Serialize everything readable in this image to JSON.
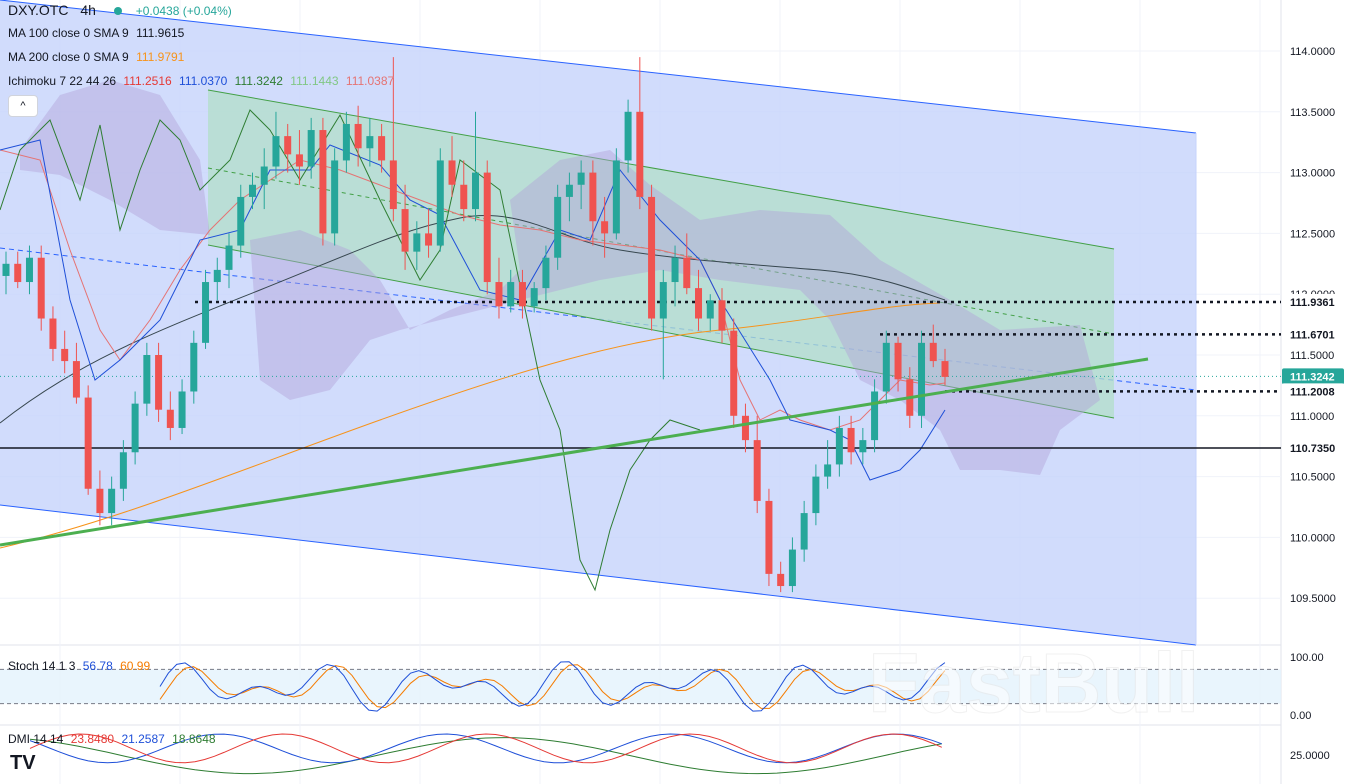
{
  "header": {
    "symbol": "DXY.OTC",
    "interval": "4h",
    "change": "+0.0438 (+0.04%)"
  },
  "legends": {
    "ma100": {
      "label": "MA 100 close 0 SMA 9",
      "value": "111.9615",
      "color": "#131722"
    },
    "ma200": {
      "label": "MA 200 close 0 SMA 9",
      "value": "111.9791",
      "color": "#f7931a"
    },
    "ichimoku": {
      "label": "Ichimoku 7 22 44 26",
      "values": [
        "111.2516",
        "111.0370",
        "111.3242",
        "111.1443",
        "111.0387"
      ],
      "colors": [
        "#e53935",
        "#1e4fd8",
        "#2e7d32",
        "#81c784",
        "#e57373"
      ]
    },
    "stoch": {
      "label": "Stoch 14 1 3",
      "values": [
        "56.78",
        "60.99"
      ],
      "colors": [
        "#1e4fd8",
        "#f57c00"
      ]
    },
    "dmi": {
      "label": "DMI 14 14",
      "values": [
        "23.8480",
        "21.2587",
        "18.8648"
      ],
      "colors": [
        "#e53935",
        "#1e4fd8",
        "#2e7d32"
      ]
    }
  },
  "price_axis": {
    "ticks": [
      "114.0000",
      "113.5000",
      "113.0000",
      "112.5000",
      "112.0000",
      "111.5000",
      "111.0000",
      "110.5000",
      "110.0000",
      "109.5000"
    ]
  },
  "price_labels": [
    {
      "value": "111.9361",
      "style": "white"
    },
    {
      "value": "111.6701",
      "style": "white"
    },
    {
      "value": "111.3242",
      "style": "teal"
    },
    {
      "value": "111.2008",
      "style": "white"
    },
    {
      "value": "110.7350",
      "style": "white"
    }
  ],
  "stoch_axis": {
    "ticks": [
      "100.00",
      "0.00"
    ]
  },
  "dmi_axis": {
    "ticks": [
      "25.0000"
    ]
  },
  "watermark": "FastBull",
  "collapse_glyph": "^",
  "logo": "TV",
  "chart_data": {
    "type": "candlestick",
    "symbol": "DXY.OTC",
    "interval": "4h",
    "y_range": [
      109.2,
      114.3
    ],
    "candles": [
      [
        112.15,
        112.35,
        112.0,
        112.25
      ],
      [
        112.25,
        112.35,
        112.05,
        112.1
      ],
      [
        112.1,
        112.4,
        112.0,
        112.3
      ],
      [
        112.3,
        112.4,
        111.7,
        111.8
      ],
      [
        111.8,
        111.9,
        111.45,
        111.55
      ],
      [
        111.55,
        111.7,
        111.35,
        111.45
      ],
      [
        111.45,
        111.6,
        111.1,
        111.15
      ],
      [
        111.15,
        111.25,
        110.35,
        110.4
      ],
      [
        110.4,
        110.55,
        110.1,
        110.2
      ],
      [
        110.2,
        110.5,
        110.1,
        110.4
      ],
      [
        110.4,
        110.8,
        110.3,
        110.7
      ],
      [
        110.7,
        111.2,
        110.6,
        111.1
      ],
      [
        111.1,
        111.6,
        111.0,
        111.5
      ],
      [
        111.5,
        111.6,
        110.95,
        111.05
      ],
      [
        111.05,
        111.2,
        110.8,
        110.9
      ],
      [
        110.9,
        111.3,
        110.85,
        111.2
      ],
      [
        111.2,
        111.7,
        111.1,
        111.6
      ],
      [
        111.6,
        112.2,
        111.55,
        112.1
      ],
      [
        112.1,
        112.3,
        111.95,
        112.2
      ],
      [
        112.2,
        112.5,
        112.05,
        112.4
      ],
      [
        112.4,
        112.9,
        112.3,
        112.8
      ],
      [
        112.8,
        113.0,
        112.7,
        112.9
      ],
      [
        112.9,
        113.2,
        112.7,
        113.05
      ],
      [
        113.05,
        113.5,
        112.95,
        113.3
      ],
      [
        113.3,
        113.4,
        113.0,
        113.15
      ],
      [
        113.15,
        113.35,
        112.9,
        113.05
      ],
      [
        113.05,
        113.45,
        112.95,
        113.35
      ],
      [
        113.35,
        113.45,
        112.4,
        112.5
      ],
      [
        112.5,
        113.2,
        112.4,
        113.1
      ],
      [
        113.1,
        113.5,
        113.0,
        113.4
      ],
      [
        113.4,
        113.55,
        113.05,
        113.2
      ],
      [
        113.2,
        113.45,
        113.05,
        113.3
      ],
      [
        113.3,
        113.4,
        113.0,
        113.1
      ],
      [
        113.1,
        113.95,
        112.6,
        112.7
      ],
      [
        112.7,
        112.9,
        112.2,
        112.35
      ],
      [
        112.35,
        112.6,
        112.2,
        112.5
      ],
      [
        112.5,
        112.7,
        112.3,
        112.4
      ],
      [
        112.4,
        113.2,
        112.35,
        113.1
      ],
      [
        113.1,
        113.3,
        112.8,
        112.9
      ],
      [
        112.9,
        113.1,
        112.6,
        112.7
      ],
      [
        112.7,
        113.5,
        112.6,
        113.0
      ],
      [
        113.0,
        113.1,
        112.0,
        112.1
      ],
      [
        112.1,
        112.3,
        111.8,
        111.9
      ],
      [
        111.9,
        112.2,
        111.85,
        112.1
      ],
      [
        112.1,
        112.2,
        111.8,
        111.9
      ],
      [
        111.9,
        112.1,
        111.85,
        112.05
      ],
      [
        112.05,
        112.4,
        111.95,
        112.3
      ],
      [
        112.3,
        112.9,
        112.2,
        112.8
      ],
      [
        112.8,
        113.0,
        112.6,
        112.9
      ],
      [
        112.9,
        113.1,
        112.7,
        113.0
      ],
      [
        113.0,
        113.1,
        112.4,
        112.6
      ],
      [
        112.6,
        112.8,
        112.3,
        112.5
      ],
      [
        112.5,
        113.2,
        112.45,
        113.1
      ],
      [
        113.1,
        113.6,
        113.0,
        113.5
      ],
      [
        113.5,
        113.95,
        112.7,
        112.8
      ],
      [
        112.8,
        112.9,
        111.7,
        111.8
      ],
      [
        111.8,
        112.2,
        111.3,
        112.1
      ],
      [
        112.1,
        112.4,
        111.9,
        112.3
      ],
      [
        112.3,
        112.5,
        112.0,
        112.05
      ],
      [
        112.05,
        112.2,
        111.7,
        111.8
      ],
      [
        111.8,
        112.0,
        111.7,
        111.95
      ],
      [
        111.95,
        112.05,
        111.6,
        111.7
      ],
      [
        111.7,
        111.8,
        110.9,
        111.0
      ],
      [
        111.0,
        111.1,
        110.7,
        110.8
      ],
      [
        110.8,
        111.0,
        110.2,
        110.3
      ],
      [
        110.3,
        110.4,
        109.6,
        109.7
      ],
      [
        109.7,
        109.8,
        109.55,
        109.6
      ],
      [
        109.6,
        110.0,
        109.55,
        109.9
      ],
      [
        109.9,
        110.3,
        109.8,
        110.2
      ],
      [
        110.2,
        110.6,
        110.1,
        110.5
      ],
      [
        110.5,
        110.8,
        110.4,
        110.6
      ],
      [
        110.6,
        111.0,
        110.5,
        110.9
      ],
      [
        110.9,
        111.0,
        110.6,
        110.7
      ],
      [
        110.7,
        110.9,
        110.6,
        110.8
      ],
      [
        110.8,
        111.3,
        110.7,
        111.2
      ],
      [
        111.2,
        111.7,
        111.1,
        111.6
      ],
      [
        111.6,
        111.65,
        111.2,
        111.3
      ],
      [
        111.3,
        111.4,
        110.9,
        111.0
      ],
      [
        111.0,
        111.7,
        110.9,
        111.6
      ],
      [
        111.6,
        111.75,
        111.4,
        111.45
      ],
      [
        111.45,
        111.55,
        111.25,
        111.32
      ]
    ],
    "ma100_last": 111.9615,
    "ma200_last": 111.9791,
    "horizontal_levels": [
      111.9361,
      111.6701,
      111.2008,
      110.735
    ],
    "last_price": 111.3242,
    "stoch": {
      "k": 56.78,
      "d": 60.99,
      "range": [
        0,
        100
      ]
    },
    "dmi": {
      "plus": 23.848,
      "minus": 21.2587,
      "adx": 18.8648,
      "axis_tick": 25.0
    }
  }
}
